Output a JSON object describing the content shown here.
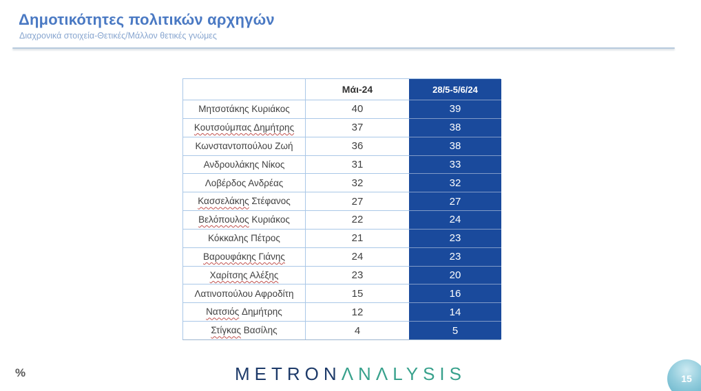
{
  "header": {
    "title": "Δημοτικότητες πολιτικών αρχηγών",
    "subtitle": "Διαχρονικά στοιχεία-Θετικές/Μάλλον θετικές γνώμες"
  },
  "footer": {
    "percent_label": "%",
    "page_number": "15",
    "logo_part1": "METRON",
    "logo_part2": "ΛNΛLYSIS"
  },
  "colors": {
    "title_blue": "#4a79c3",
    "subtitle_blue": "#87a5cf",
    "accent_blue": "#1a4a9c",
    "row_border": "#a9c7e7",
    "text_dark": "#3f3f3f",
    "squiggle_red": "#c0504d",
    "logo_navy": "#1d3a69",
    "logo_teal": "#38a18c"
  },
  "chart_data": {
    "type": "table",
    "title": "Δημοτικότητες πολιτικών αρχηγών",
    "subtitle": "Διαχρονικά στοιχεία-Θετικές/Μάλλον θετικές γνώμες",
    "columns": [
      "",
      "Μάι-24",
      "28/5-5/6/24"
    ],
    "rows": [
      {
        "name": "Μητσοτάκης Κυριάκος",
        "may24": 40,
        "current": 39,
        "spellcheck": "none"
      },
      {
        "name": "Κουτσούμπας Δημήτρης",
        "may24": 37,
        "current": 38,
        "spellcheck": "all"
      },
      {
        "name": "Κωνσταντοπούλου Ζωή",
        "may24": 36,
        "current": 38,
        "spellcheck": "none"
      },
      {
        "name": "Ανδρουλάκης Νίκος",
        "may24": 31,
        "current": 33,
        "spellcheck": "none"
      },
      {
        "name": "Λοβέρδος Ανδρέας",
        "may24": 32,
        "current": 32,
        "spellcheck": "none"
      },
      {
        "name": "Κασσελάκης Στέφανος",
        "may24": 27,
        "current": 27,
        "spellcheck": "first"
      },
      {
        "name": "Βελόπουλος Κυριάκος",
        "may24": 22,
        "current": 24,
        "spellcheck": "first"
      },
      {
        "name": "Κόκκαλης Πέτρος",
        "may24": 21,
        "current": 23,
        "spellcheck": "none"
      },
      {
        "name": "Βαρουφάκης Γιάνης",
        "may24": 24,
        "current": 23,
        "spellcheck": "all"
      },
      {
        "name": "Χαρίτσης Αλέξης",
        "may24": 23,
        "current": 20,
        "spellcheck": "all"
      },
      {
        "name": "Λατινοπούλου Αφροδίτη",
        "may24": 15,
        "current": 16,
        "spellcheck": "none"
      },
      {
        "name": "Νατσιός Δημήτρης",
        "may24": 12,
        "current": 14,
        "spellcheck": "first"
      },
      {
        "name": "Στίγκας Βασίλης",
        "may24": 4,
        "current": 5,
        "spellcheck": "first"
      }
    ]
  }
}
